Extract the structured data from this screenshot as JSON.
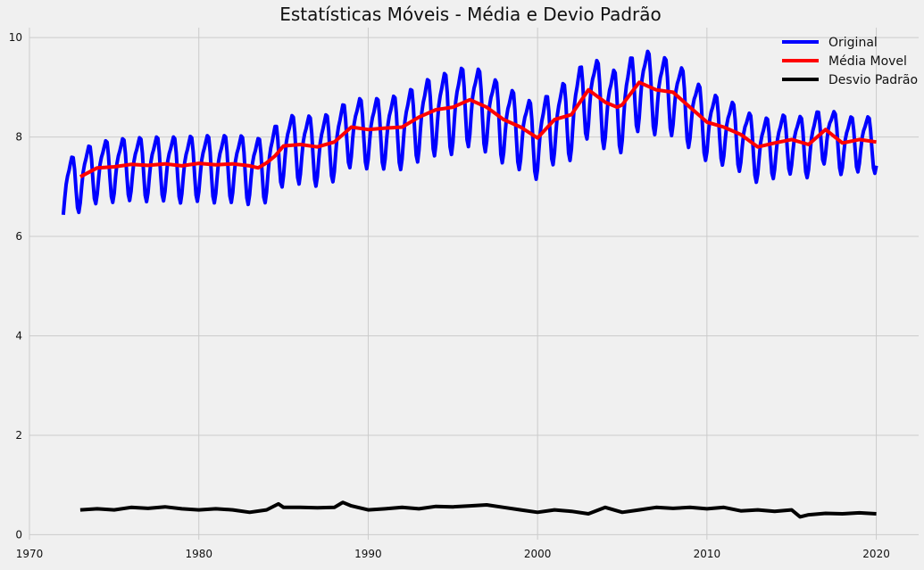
{
  "chart_data": {
    "type": "line",
    "title": "Estatísticas Móveis - Média e Devio Padrão",
    "xlabel": "",
    "ylabel": "",
    "xlim": [
      1970,
      2022.5
    ],
    "ylim": [
      -0.1,
      10.2
    ],
    "x_ticks": [
      1970,
      1980,
      1990,
      2000,
      2010,
      2020
    ],
    "y_ticks": [
      0,
      2,
      4,
      6,
      8,
      10
    ],
    "grid": true,
    "legend": "top-right",
    "original_shape": {
      "start_year": 1972,
      "end_year": 2020,
      "cycles_per_year": 1,
      "points_per_year": 12
    },
    "series": [
      {
        "name": "Original",
        "color": "#0000ff",
        "description": "seasonal monthly series oscillating around the moving mean",
        "amplitude_by_year": [
          [
            1972,
            0.65
          ],
          [
            1980,
            0.72
          ],
          [
            1985,
            0.75
          ],
          [
            1990,
            0.75
          ],
          [
            1995,
            0.9
          ],
          [
            2000,
            0.8
          ],
          [
            2003,
            0.9
          ],
          [
            2006,
            0.9
          ],
          [
            2010,
            0.75
          ],
          [
            2015,
            0.65
          ],
          [
            2020,
            0.6
          ]
        ]
      },
      {
        "name": "Média Movel",
        "color": "#ff0000",
        "x": [
          1973.0,
          1974.0,
          1975.0,
          1976.0,
          1977.0,
          1978.0,
          1979.0,
          1980.0,
          1981.0,
          1982.0,
          1983.0,
          1983.5,
          1984.0,
          1984.5,
          1985.0,
          1986.0,
          1987.0,
          1988.0,
          1989.0,
          1990.0,
          1991.0,
          1992.0,
          1993.0,
          1994.0,
          1995.0,
          1996.0,
          1997.0,
          1998.0,
          1999.0,
          2000.0,
          2001.0,
          2002.0,
          2003.0,
          2004.0,
          2004.7,
          2005.0,
          2006.0,
          2007.0,
          2008.0,
          2009.0,
          2010.0,
          2011.0,
          2012.0,
          2013.0,
          2014.0,
          2015.0,
          2016.0,
          2017.0,
          2018.0,
          2019.0,
          2020.0
        ],
        "y": [
          7.2,
          7.38,
          7.4,
          7.45,
          7.43,
          7.46,
          7.42,
          7.47,
          7.44,
          7.46,
          7.42,
          7.38,
          7.48,
          7.62,
          7.82,
          7.85,
          7.8,
          7.9,
          8.2,
          8.15,
          8.18,
          8.2,
          8.4,
          8.55,
          8.6,
          8.75,
          8.6,
          8.35,
          8.2,
          7.98,
          8.35,
          8.45,
          8.95,
          8.7,
          8.6,
          8.65,
          9.1,
          8.95,
          8.9,
          8.6,
          8.3,
          8.2,
          8.05,
          7.8,
          7.88,
          7.95,
          7.85,
          8.15,
          7.88,
          7.95,
          7.9
        ]
      },
      {
        "name": "Desvio Padrão",
        "color": "#000000",
        "x": [
          1973.0,
          1974.0,
          1975.0,
          1976.0,
          1977.0,
          1978.0,
          1979.0,
          1980.0,
          1981.0,
          1982.0,
          1983.0,
          1984.0,
          1984.7,
          1985.0,
          1986.0,
          1987.0,
          1988.0,
          1988.5,
          1989.0,
          1990.0,
          1991.0,
          1992.0,
          1993.0,
          1994.0,
          1995.0,
          1996.0,
          1997.0,
          1998.0,
          1999.0,
          2000.0,
          2001.0,
          2002.0,
          2003.0,
          2004.0,
          2005.0,
          2006.0,
          2007.0,
          2008.0,
          2009.0,
          2010.0,
          2011.0,
          2012.0,
          2013.0,
          2014.0,
          2015.0,
          2015.5,
          2016.0,
          2017.0,
          2018.0,
          2019.0,
          2020.0
        ],
        "y": [
          0.5,
          0.52,
          0.5,
          0.55,
          0.53,
          0.56,
          0.52,
          0.5,
          0.52,
          0.5,
          0.45,
          0.5,
          0.62,
          0.55,
          0.55,
          0.54,
          0.55,
          0.65,
          0.58,
          0.5,
          0.52,
          0.55,
          0.52,
          0.57,
          0.56,
          0.58,
          0.6,
          0.55,
          0.5,
          0.45,
          0.5,
          0.47,
          0.42,
          0.55,
          0.45,
          0.5,
          0.55,
          0.53,
          0.55,
          0.52,
          0.55,
          0.48,
          0.5,
          0.47,
          0.5,
          0.36,
          0.4,
          0.43,
          0.42,
          0.44,
          0.42
        ]
      }
    ]
  }
}
